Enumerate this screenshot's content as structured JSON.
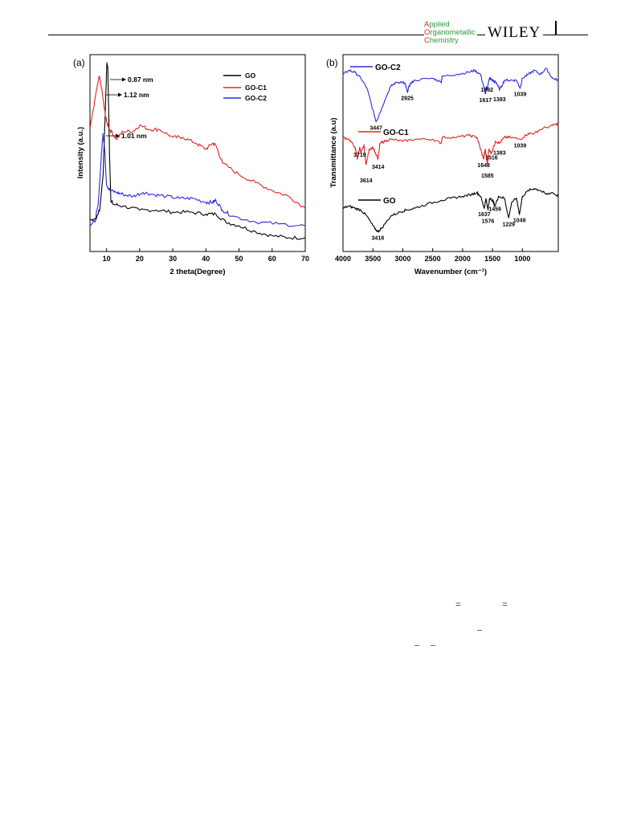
{
  "header": {
    "journal_caps": [
      "A",
      "O",
      "C"
    ],
    "journal_rest": [
      "pplied",
      "rganometallic",
      "hemistry"
    ],
    "publisher": "WILEY",
    "journal_color": "#2a9a3a",
    "journal_cap_color": "#d9262b"
  },
  "fragments": {
    "eq1": "=",
    "eq2": "=",
    "bar1": "–",
    "bar2": "–",
    "bar3": "–"
  },
  "chart_data": [
    {
      "type": "line",
      "panel_label": "(a)",
      "xlabel": "2 theta(Degree)",
      "ylabel": "Intensity (a.u.)",
      "xlim": [
        5,
        70
      ],
      "x_ticks": [
        10,
        20,
        30,
        40,
        50,
        60,
        70
      ],
      "grid": false,
      "legend_position": "top-right",
      "series": [
        {
          "name": "GO",
          "color": "#000000",
          "points": [
            [
              5,
              0.16
            ],
            [
              7,
              0.17
            ],
            [
              8,
              0.22
            ],
            [
              9,
              0.4
            ],
            [
              9.6,
              0.7
            ],
            [
              10.1,
              0.96
            ],
            [
              10.4,
              0.93
            ],
            [
              10.9,
              0.5
            ],
            [
              11.3,
              0.26
            ],
            [
              12,
              0.24
            ],
            [
              15,
              0.23
            ],
            [
              20,
              0.21
            ],
            [
              25,
              0.21
            ],
            [
              30,
              0.2
            ],
            [
              35,
              0.2
            ],
            [
              40,
              0.19
            ],
            [
              43,
              0.19
            ],
            [
              46,
              0.15
            ],
            [
              50,
              0.13
            ],
            [
              55,
              0.1
            ],
            [
              60,
              0.08
            ],
            [
              65,
              0.07
            ],
            [
              70,
              0.07
            ]
          ]
        },
        {
          "name": "GO-C1",
          "color": "#e32222",
          "points": [
            [
              5,
              0.63
            ],
            [
              6,
              0.72
            ],
            [
              7,
              0.82
            ],
            [
              7.8,
              0.89
            ],
            [
              8.5,
              0.83
            ],
            [
              9.3,
              0.73
            ],
            [
              10,
              0.66
            ],
            [
              11,
              0.62
            ],
            [
              13,
              0.57
            ],
            [
              15,
              0.61
            ],
            [
              18,
              0.61
            ],
            [
              20,
              0.64
            ],
            [
              23,
              0.62
            ],
            [
              26,
              0.62
            ],
            [
              30,
              0.58
            ],
            [
              33,
              0.58
            ],
            [
              37,
              0.55
            ],
            [
              40,
              0.52
            ],
            [
              42,
              0.55
            ],
            [
              43,
              0.54
            ],
            [
              45,
              0.45
            ],
            [
              50,
              0.39
            ],
            [
              55,
              0.35
            ],
            [
              60,
              0.31
            ],
            [
              65,
              0.28
            ],
            [
              70,
              0.22
            ]
          ]
        },
        {
          "name": "GO-C2",
          "color": "#2b2be0",
          "points": [
            [
              5,
              0.14
            ],
            [
              6.5,
              0.15
            ],
            [
              7.5,
              0.24
            ],
            [
              8.3,
              0.45
            ],
            [
              8.9,
              0.6
            ],
            [
              9.4,
              0.53
            ],
            [
              10,
              0.34
            ],
            [
              11,
              0.31
            ],
            [
              13,
              0.3
            ],
            [
              15,
              0.29
            ],
            [
              18,
              0.28
            ],
            [
              21,
              0.3
            ],
            [
              24,
              0.29
            ],
            [
              28,
              0.28
            ],
            [
              32,
              0.27
            ],
            [
              36,
              0.27
            ],
            [
              40,
              0.25
            ],
            [
              42,
              0.25
            ],
            [
              43,
              0.26
            ],
            [
              45,
              0.21
            ],
            [
              48,
              0.18
            ],
            [
              55,
              0.15
            ],
            [
              62,
              0.14
            ],
            [
              70,
              0.13
            ]
          ]
        }
      ],
      "annotations": [
        "0.87 nm",
        "1.12 nm",
        "1.01 nm"
      ]
    },
    {
      "type": "line",
      "panel_label": "(b)",
      "xlabel": "Wavenumber (cm⁻¹)",
      "ylabel": "Transmittance (a.u)",
      "xlim": [
        4000,
        400
      ],
      "x_ticks": [
        4000,
        3500,
        3000,
        2500,
        2000,
        1500,
        1000
      ],
      "grid": false,
      "series": [
        {
          "name": "GO-C2",
          "color": "#2b2be0",
          "points": [
            [
              4000,
              0.9
            ],
            [
              3900,
              0.92
            ],
            [
              3800,
              0.91
            ],
            [
              3700,
              0.88
            ],
            [
              3600,
              0.83
            ],
            [
              3500,
              0.72
            ],
            [
              3447,
              0.66
            ],
            [
              3400,
              0.69
            ],
            [
              3300,
              0.77
            ],
            [
              3200,
              0.84
            ],
            [
              3100,
              0.86
            ],
            [
              3000,
              0.86
            ],
            [
              2960,
              0.85
            ],
            [
              2925,
              0.81
            ],
            [
              2880,
              0.85
            ],
            [
              2800,
              0.87
            ],
            [
              2500,
              0.88
            ],
            [
              2360,
              0.86
            ],
            [
              2340,
              0.89
            ],
            [
              2100,
              0.9
            ],
            [
              1900,
              0.91
            ],
            [
              1800,
              0.92
            ],
            [
              1700,
              0.9
            ],
            [
              1650,
              0.84
            ],
            [
              1617,
              0.8
            ],
            [
              1600,
              0.84
            ],
            [
              1592,
              0.82
            ],
            [
              1550,
              0.88
            ],
            [
              1500,
              0.87
            ],
            [
              1450,
              0.86
            ],
            [
              1400,
              0.84
            ],
            [
              1383,
              0.82
            ],
            [
              1300,
              0.87
            ],
            [
              1200,
              0.87
            ],
            [
              1100,
              0.87
            ],
            [
              1039,
              0.83
            ],
            [
              1000,
              0.88
            ],
            [
              900,
              0.9
            ],
            [
              800,
              0.92
            ],
            [
              700,
              0.9
            ],
            [
              600,
              0.93
            ],
            [
              500,
              0.88
            ],
            [
              400,
              0.87
            ]
          ]
        },
        {
          "name": "GO-C1",
          "color": "#e32222",
          "points": [
            [
              4000,
              0.58
            ],
            [
              3900,
              0.57
            ],
            [
              3800,
              0.53
            ],
            [
              3760,
              0.47
            ],
            [
              3719,
              0.53
            ],
            [
              3700,
              0.5
            ],
            [
              3650,
              0.54
            ],
            [
              3614,
              0.44
            ],
            [
              3560,
              0.52
            ],
            [
              3500,
              0.53
            ],
            [
              3414,
              0.47
            ],
            [
              3380,
              0.55
            ],
            [
              3300,
              0.56
            ],
            [
              3200,
              0.57
            ],
            [
              3000,
              0.56
            ],
            [
              2800,
              0.57
            ],
            [
              2500,
              0.57
            ],
            [
              2360,
              0.55
            ],
            [
              2340,
              0.58
            ],
            [
              2100,
              0.58
            ],
            [
              1900,
              0.59
            ],
            [
              1760,
              0.58
            ],
            [
              1700,
              0.52
            ],
            [
              1648,
              0.47
            ],
            [
              1620,
              0.52
            ],
            [
              1585,
              0.44
            ],
            [
              1560,
              0.52
            ],
            [
              1516,
              0.5
            ],
            [
              1450,
              0.56
            ],
            [
              1383,
              0.55
            ],
            [
              1300,
              0.58
            ],
            [
              1200,
              0.58
            ],
            [
              1039,
              0.57
            ],
            [
              900,
              0.6
            ],
            [
              800,
              0.6
            ],
            [
              700,
              0.62
            ],
            [
              500,
              0.64
            ],
            [
              400,
              0.65
            ]
          ]
        },
        {
          "name": "GO",
          "color": "#000000",
          "points": [
            [
              4000,
              0.22
            ],
            [
              3900,
              0.23
            ],
            [
              3800,
              0.22
            ],
            [
              3700,
              0.21
            ],
            [
              3600,
              0.18
            ],
            [
              3500,
              0.13
            ],
            [
              3418,
              0.1
            ],
            [
              3350,
              0.12
            ],
            [
              3200,
              0.18
            ],
            [
              3050,
              0.2
            ],
            [
              2950,
              0.21
            ],
            [
              2800,
              0.22
            ],
            [
              2600,
              0.24
            ],
            [
              2360,
              0.26
            ],
            [
              2200,
              0.27
            ],
            [
              2000,
              0.28
            ],
            [
              1850,
              0.29
            ],
            [
              1760,
              0.3
            ],
            [
              1700,
              0.28
            ],
            [
              1637,
              0.22
            ],
            [
              1610,
              0.27
            ],
            [
              1576,
              0.21
            ],
            [
              1550,
              0.27
            ],
            [
              1500,
              0.26
            ],
            [
              1459,
              0.23
            ],
            [
              1400,
              0.28
            ],
            [
              1300,
              0.27
            ],
            [
              1229,
              0.17
            ],
            [
              1180,
              0.25
            ],
            [
              1100,
              0.27
            ],
            [
              1049,
              0.19
            ],
            [
              1000,
              0.28
            ],
            [
              900,
              0.31
            ],
            [
              800,
              0.32
            ],
            [
              700,
              0.31
            ],
            [
              600,
              0.29
            ],
            [
              500,
              0.3
            ],
            [
              400,
              0.28
            ]
          ]
        }
      ],
      "peak_labels": {
        "GO-C2": [
          "3447",
          "2925",
          "1617",
          "1592",
          "1383",
          "1039"
        ],
        "GO-C1": [
          "3719",
          "3614",
          "3414",
          "1648",
          "1585",
          "1516",
          "1383",
          "1039"
        ],
        "GO": [
          "3418",
          "1637",
          "1576",
          "1459",
          "1229",
          "1049"
        ]
      }
    }
  ]
}
